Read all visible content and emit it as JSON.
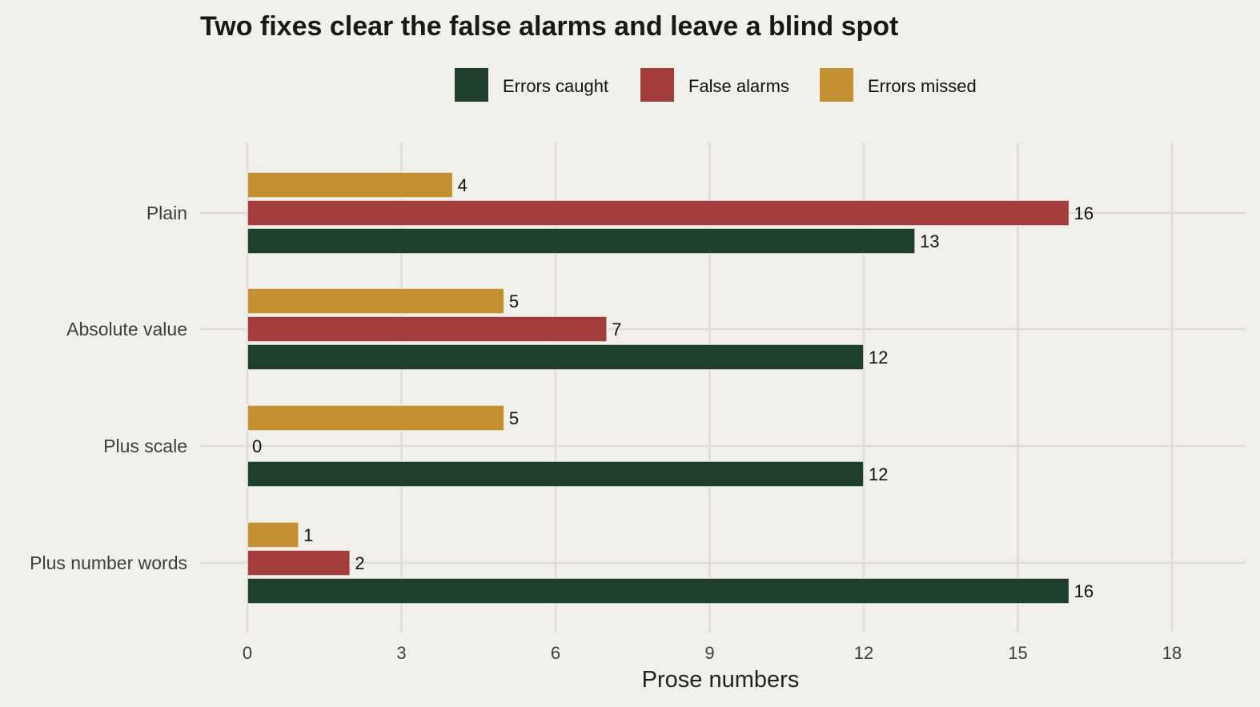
{
  "chart_data": {
    "type": "bar",
    "orientation": "horizontal",
    "title": "Two fixes clear the false alarms and leave a blind spot",
    "xlabel": "Prose numbers",
    "ylabel": "",
    "categories": [
      "Plain",
      "Absolute value",
      "Plus scale",
      "Plus number words"
    ],
    "series": [
      {
        "name": "Errors caught",
        "color": "#1f3f2d",
        "values": [
          13,
          12,
          12,
          16
        ]
      },
      {
        "name": "False alarms",
        "color": "#a33d3d",
        "values": [
          16,
          7,
          0,
          2
        ]
      },
      {
        "name": "Errors missed",
        "color": "#c49132",
        "values": [
          4,
          5,
          5,
          1
        ]
      }
    ],
    "xlim": [
      0,
      18
    ],
    "xticks": [
      0,
      3,
      6,
      9,
      12,
      15,
      18
    ],
    "grid": true,
    "legend_position": "top"
  }
}
